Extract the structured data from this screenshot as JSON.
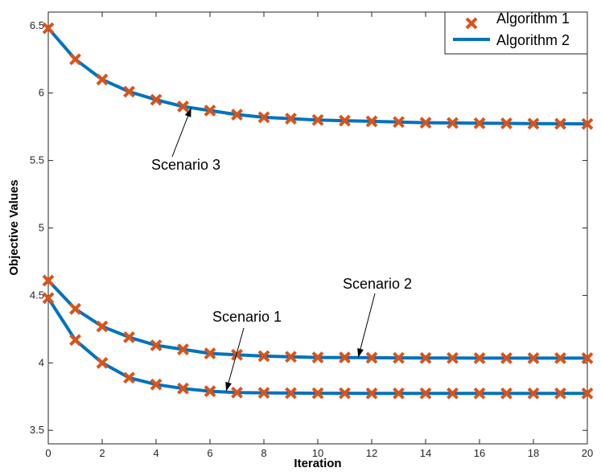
{
  "chart_data": {
    "type": "line",
    "xlabel": "Iteration",
    "ylabel": "Objective Values",
    "xlim": [
      0,
      20
    ],
    "ylim": [
      3.4,
      6.6
    ],
    "xticks": [
      0,
      2,
      4,
      6,
      8,
      10,
      12,
      14,
      16,
      18,
      20
    ],
    "yticks": [
      3.5,
      4,
      4.5,
      5,
      5.5,
      6,
      6.5
    ],
    "ytick_labels": [
      "3.5",
      "4",
      "4.5",
      "5",
      "5.5",
      "6",
      "6.5"
    ],
    "legend": {
      "location": "top-right",
      "entries": [
        "Algorithm 1",
        "Algorithm 2"
      ]
    },
    "colors": {
      "algorithm1": "#D95319",
      "algorithm2": "#0072BD"
    },
    "grid": false,
    "x": [
      0,
      1,
      2,
      3,
      4,
      5,
      6,
      7,
      8,
      9,
      10,
      11,
      12,
      13,
      14,
      15,
      16,
      17,
      18,
      19,
      20
    ],
    "curves": [
      {
        "annotation": "Scenario 3",
        "values": [
          6.48,
          6.25,
          6.1,
          6.01,
          5.95,
          5.9,
          5.87,
          5.84,
          5.82,
          5.81,
          5.8,
          5.795,
          5.79,
          5.785,
          5.78,
          5.778,
          5.776,
          5.775,
          5.773,
          5.772,
          5.771
        ]
      },
      {
        "annotation": "Scenario 2",
        "values": [
          4.61,
          4.4,
          4.27,
          4.19,
          4.13,
          4.1,
          4.07,
          4.06,
          4.05,
          4.045,
          4.04,
          4.04,
          4.038,
          4.037,
          4.036,
          4.036,
          4.035,
          4.035,
          4.035,
          4.035,
          4.035
        ]
      },
      {
        "annotation": "Scenario 1",
        "values": [
          4.48,
          4.17,
          4.0,
          3.89,
          3.84,
          3.81,
          3.79,
          3.78,
          3.778,
          3.776,
          3.775,
          3.775,
          3.774,
          3.774,
          3.774,
          3.774,
          3.774,
          3.774,
          3.774,
          3.774,
          3.774
        ]
      }
    ],
    "annotations": [
      {
        "text": "Scenario 3",
        "points_to": [
          5.3,
          5.89
        ]
      },
      {
        "text": "Scenario 2",
        "points_to": [
          11.5,
          4.04
        ]
      },
      {
        "text": "Scenario 1",
        "points_to": [
          6.6,
          3.79
        ]
      }
    ]
  }
}
